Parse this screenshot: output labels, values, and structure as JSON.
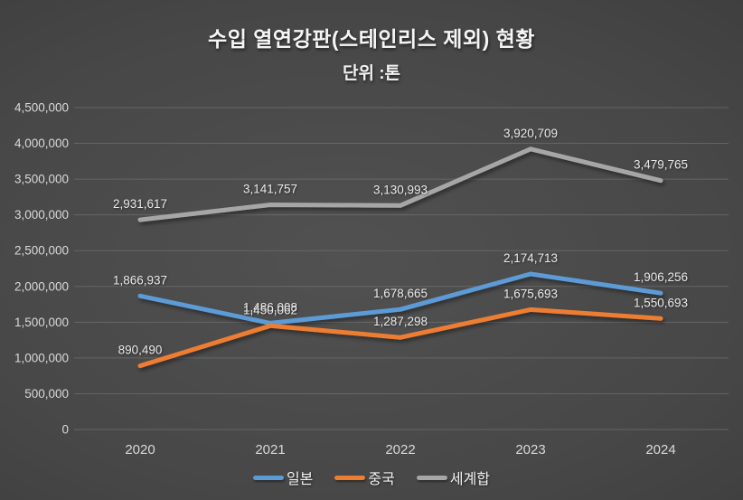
{
  "title": "수입 열연강판(스테인리스 제외) 현황",
  "subtitle": "단위 :톤",
  "chart_data": {
    "type": "line",
    "title": "수입 열연강판(스테인리스 제외) 현황",
    "subtitle_unit": "단위 :톤",
    "categories": [
      "2020",
      "2021",
      "2022",
      "2023",
      "2024"
    ],
    "series": [
      {
        "name": "일본",
        "key": "japan",
        "color": "#5B9BD5",
        "values": [
          1866937,
          1486008,
          1678665,
          2174713,
          1906256
        ]
      },
      {
        "name": "중국",
        "key": "china",
        "color": "#ED7D31",
        "values": [
          890490,
          1450062,
          1287298,
          1675693,
          1550693
        ]
      },
      {
        "name": "세계합",
        "key": "world",
        "color": "#A6A6A6",
        "values": [
          2931617,
          3141757,
          3130993,
          3920709,
          3479765
        ]
      }
    ],
    "ylim": [
      0,
      4500000
    ],
    "ytick_step": 500000,
    "yticks": [
      0,
      500000,
      1000000,
      1500000,
      2000000,
      2500000,
      3000000,
      3500000,
      4000000,
      4500000
    ],
    "grid": true,
    "data_labels": true,
    "number_format": "comma",
    "legend_position": "bottom",
    "note": "일본/중국 2021 data labels overlap in source"
  },
  "colors": {
    "background": "#474747",
    "grid_line": "#6f6f6f",
    "axis_text": "#d9d9d9",
    "data_label_text": "#e8e8e8",
    "title_text": "#f5f5f5"
  }
}
